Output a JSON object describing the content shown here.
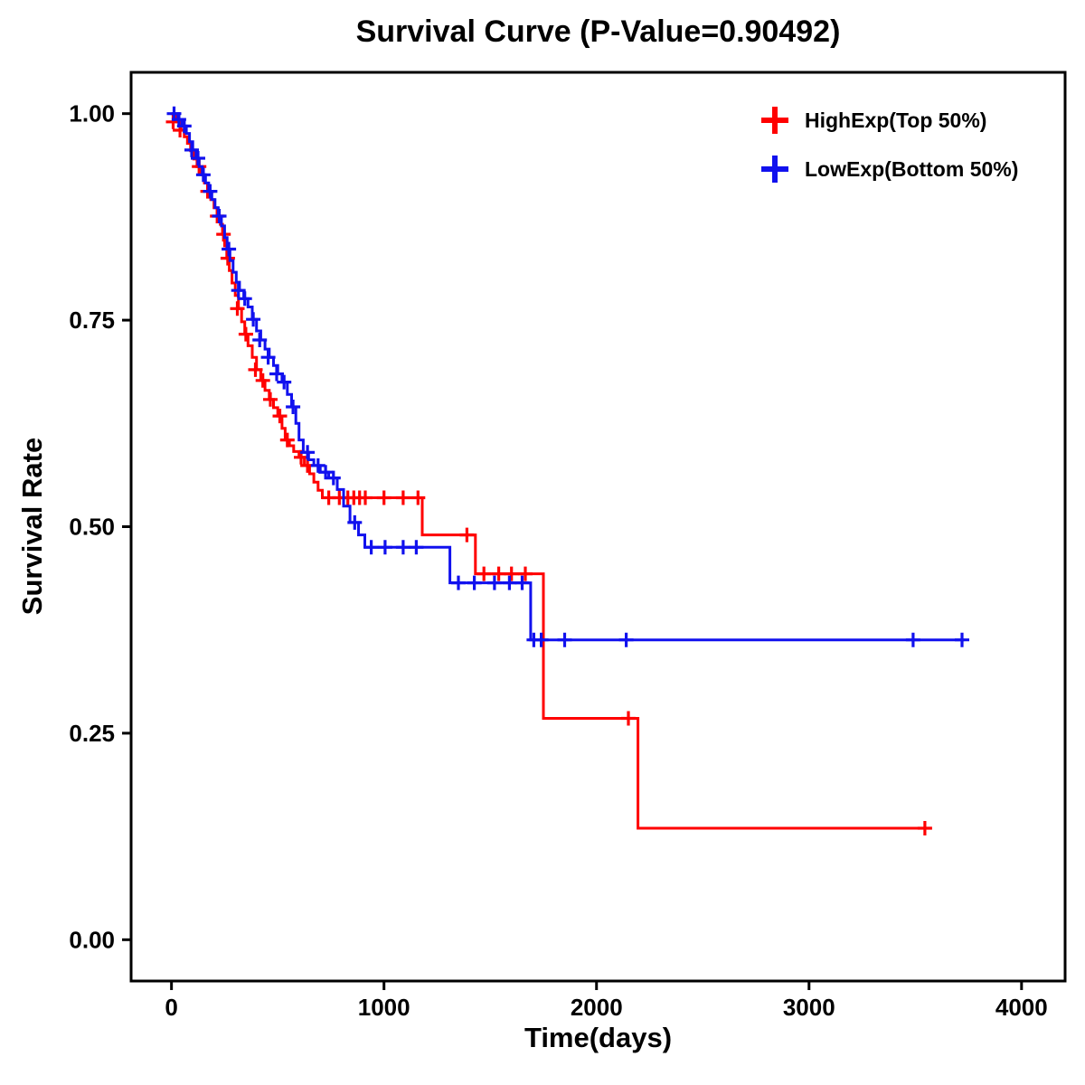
{
  "figure": {
    "background": "#FFFFFF",
    "axis_color": "#000000",
    "p_value": "0.90492"
  },
  "chart_data": {
    "type": "line",
    "subtype": "kaplan-meier-step-survival",
    "title": "Survival Curve (P-Value=0.90492)",
    "xlabel": "Time(days)",
    "ylabel": "Survival Rate",
    "xlim": [
      -190,
      4205
    ],
    "ylim": [
      -0.05,
      1.05
    ],
    "xticks": [
      0,
      1000,
      2000,
      3000,
      4000
    ],
    "xtick_labels": [
      "0",
      "1000",
      "2000",
      "3000",
      "4000"
    ],
    "yticks": [
      0.0,
      0.25,
      0.5,
      0.75,
      1.0
    ],
    "ytick_labels": [
      "0.00",
      "0.25",
      "0.50",
      "0.75",
      "1.00"
    ],
    "grid": false,
    "legend_position": "top-right-inside",
    "series": [
      {
        "id": "highexp",
        "name": "HighExp(Top 50%)",
        "color": "#FF0000",
        "marker": "plus-censor",
        "steps": [
          [
            0,
            1.0
          ],
          [
            25,
            0.99
          ],
          [
            45,
            0.98
          ],
          [
            60,
            0.972
          ],
          [
            75,
            0.964
          ],
          [
            90,
            0.955
          ],
          [
            105,
            0.945
          ],
          [
            120,
            0.936
          ],
          [
            140,
            0.926
          ],
          [
            155,
            0.916
          ],
          [
            170,
            0.906
          ],
          [
            185,
            0.896
          ],
          [
            200,
            0.886
          ],
          [
            215,
            0.876
          ],
          [
            230,
            0.866
          ],
          [
            240,
            0.854
          ],
          [
            250,
            0.84
          ],
          [
            260,
            0.825
          ],
          [
            272,
            0.81
          ],
          [
            285,
            0.795
          ],
          [
            300,
            0.78
          ],
          [
            315,
            0.764
          ],
          [
            330,
            0.748
          ],
          [
            345,
            0.733
          ],
          [
            360,
            0.719
          ],
          [
            380,
            0.705
          ],
          [
            400,
            0.69
          ],
          [
            420,
            0.677
          ],
          [
            440,
            0.665
          ],
          [
            460,
            0.654
          ],
          [
            480,
            0.644
          ],
          [
            500,
            0.634
          ],
          [
            520,
            0.619
          ],
          [
            535,
            0.605
          ],
          [
            555,
            0.598
          ],
          [
            575,
            0.591
          ],
          [
            600,
            0.584
          ],
          [
            625,
            0.574
          ],
          [
            650,
            0.564
          ],
          [
            670,
            0.554
          ],
          [
            690,
            0.544
          ],
          [
            710,
            0.535
          ],
          [
            1180,
            0.49
          ],
          [
            1430,
            0.443
          ],
          [
            1750,
            0.268
          ],
          [
            2195,
            0.135
          ]
        ],
        "end_time": 3560,
        "censors": [
          [
            8,
            0.99
          ],
          [
            40,
            0.98
          ],
          [
            130,
            0.936
          ],
          [
            170,
            0.906
          ],
          [
            215,
            0.876
          ],
          [
            245,
            0.854
          ],
          [
            265,
            0.825
          ],
          [
            310,
            0.764
          ],
          [
            350,
            0.733
          ],
          [
            395,
            0.69
          ],
          [
            430,
            0.677
          ],
          [
            465,
            0.654
          ],
          [
            510,
            0.634
          ],
          [
            545,
            0.605
          ],
          [
            610,
            0.584
          ],
          [
            640,
            0.574
          ],
          [
            740,
            0.535
          ],
          [
            790,
            0.535
          ],
          [
            830,
            0.535
          ],
          [
            858,
            0.535
          ],
          [
            885,
            0.535
          ],
          [
            912,
            0.535
          ],
          [
            1000,
            0.535
          ],
          [
            1090,
            0.535
          ],
          [
            1160,
            0.535
          ],
          [
            1390,
            0.49
          ],
          [
            1470,
            0.443
          ],
          [
            1540,
            0.443
          ],
          [
            1600,
            0.443
          ],
          [
            1665,
            0.443
          ],
          [
            2150,
            0.268
          ],
          [
            3545,
            0.135
          ]
        ]
      },
      {
        "id": "lowexp",
        "name": "LowExp(Bottom 50%)",
        "color": "#1111EE",
        "marker": "plus-censor",
        "steps": [
          [
            0,
            1.0
          ],
          [
            30,
            0.993
          ],
          [
            50,
            0.985
          ],
          [
            70,
            0.976
          ],
          [
            85,
            0.966
          ],
          [
            100,
            0.956
          ],
          [
            115,
            0.946
          ],
          [
            130,
            0.936
          ],
          [
            145,
            0.926
          ],
          [
            160,
            0.916
          ],
          [
            175,
            0.906
          ],
          [
            190,
            0.896
          ],
          [
            205,
            0.886
          ],
          [
            220,
            0.876
          ],
          [
            235,
            0.864
          ],
          [
            250,
            0.85
          ],
          [
            262,
            0.836
          ],
          [
            275,
            0.822
          ],
          [
            290,
            0.808
          ],
          [
            305,
            0.796
          ],
          [
            320,
            0.786
          ],
          [
            340,
            0.776
          ],
          [
            360,
            0.766
          ],
          [
            380,
            0.751
          ],
          [
            400,
            0.737
          ],
          [
            420,
            0.726
          ],
          [
            440,
            0.715
          ],
          [
            460,
            0.705
          ],
          [
            480,
            0.695
          ],
          [
            500,
            0.685
          ],
          [
            520,
            0.675
          ],
          [
            545,
            0.66
          ],
          [
            565,
            0.645
          ],
          [
            585,
            0.625
          ],
          [
            600,
            0.605
          ],
          [
            620,
            0.59
          ],
          [
            645,
            0.581
          ],
          [
            670,
            0.574
          ],
          [
            700,
            0.566
          ],
          [
            740,
            0.559
          ],
          [
            780,
            0.545
          ],
          [
            810,
            0.525
          ],
          [
            840,
            0.505
          ],
          [
            880,
            0.49
          ],
          [
            910,
            0.475
          ],
          [
            1310,
            0.432
          ],
          [
            1690,
            0.363
          ]
        ],
        "end_time": 3730,
        "censors": [
          [
            12,
            1.0
          ],
          [
            35,
            0.993
          ],
          [
            60,
            0.985
          ],
          [
            95,
            0.956
          ],
          [
            125,
            0.946
          ],
          [
            150,
            0.926
          ],
          [
            182,
            0.906
          ],
          [
            225,
            0.876
          ],
          [
            270,
            0.836
          ],
          [
            315,
            0.786
          ],
          [
            345,
            0.776
          ],
          [
            385,
            0.751
          ],
          [
            415,
            0.726
          ],
          [
            455,
            0.705
          ],
          [
            495,
            0.685
          ],
          [
            530,
            0.675
          ],
          [
            572,
            0.645
          ],
          [
            640,
            0.59
          ],
          [
            690,
            0.574
          ],
          [
            725,
            0.566
          ],
          [
            762,
            0.559
          ],
          [
            862,
            0.505
          ],
          [
            940,
            0.475
          ],
          [
            1005,
            0.475
          ],
          [
            1090,
            0.475
          ],
          [
            1152,
            0.475
          ],
          [
            1350,
            0.432
          ],
          [
            1425,
            0.432
          ],
          [
            1520,
            0.432
          ],
          [
            1590,
            0.432
          ],
          [
            1650,
            0.432
          ],
          [
            1705,
            0.363
          ],
          [
            1740,
            0.363
          ],
          [
            1850,
            0.363
          ],
          [
            2140,
            0.363
          ],
          [
            3490,
            0.363
          ],
          [
            3720,
            0.363
          ]
        ]
      }
    ]
  }
}
